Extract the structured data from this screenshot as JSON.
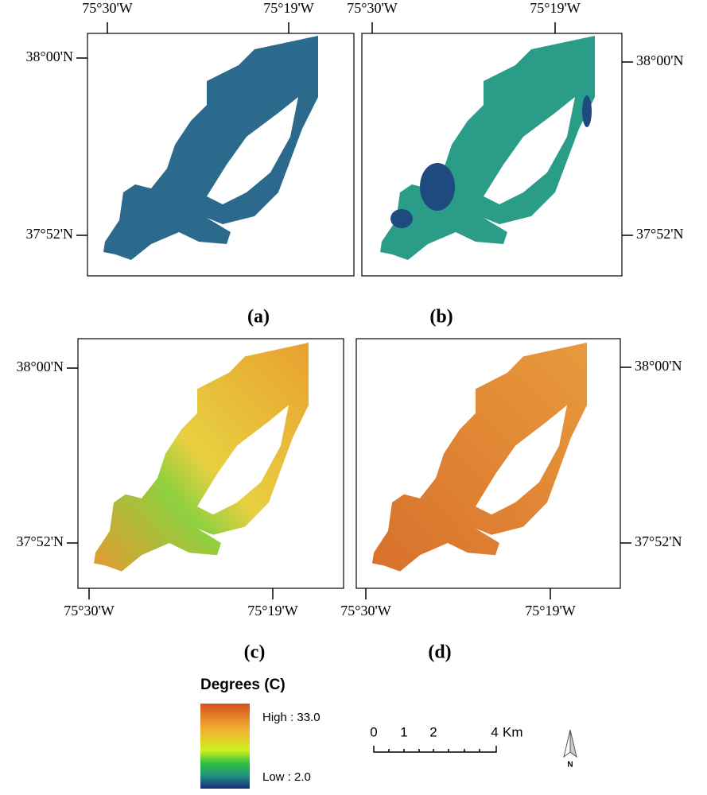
{
  "panels": [
    {
      "label": "(a)",
      "x_ticks": [
        "75°30'W",
        "75°19'W"
      ],
      "y_ticks": [
        "38°00'N",
        "37°52'N"
      ]
    },
    {
      "label": "(b)",
      "x_ticks": [
        "75°30'W",
        "75°19'W"
      ],
      "y_ticks": [
        "38°00'N",
        "37°52'N"
      ]
    },
    {
      "label": "(c)",
      "x_ticks": [
        "75°30'W",
        "75°19'W"
      ],
      "y_ticks": [
        "38°00'N",
        "37°52'N"
      ]
    },
    {
      "label": "(d)",
      "x_ticks": [
        "75°30'W",
        "75°19'W"
      ],
      "y_ticks": [
        "38°00'N",
        "37°52'N"
      ]
    }
  ],
  "legend": {
    "title": "Degrees (C)",
    "high": "High : 33.0",
    "low": "Low : 2.0"
  },
  "scale_bar": {
    "ticks": [
      "0",
      "1",
      "2",
      "4"
    ],
    "unit": "Km"
  },
  "north": "N"
}
